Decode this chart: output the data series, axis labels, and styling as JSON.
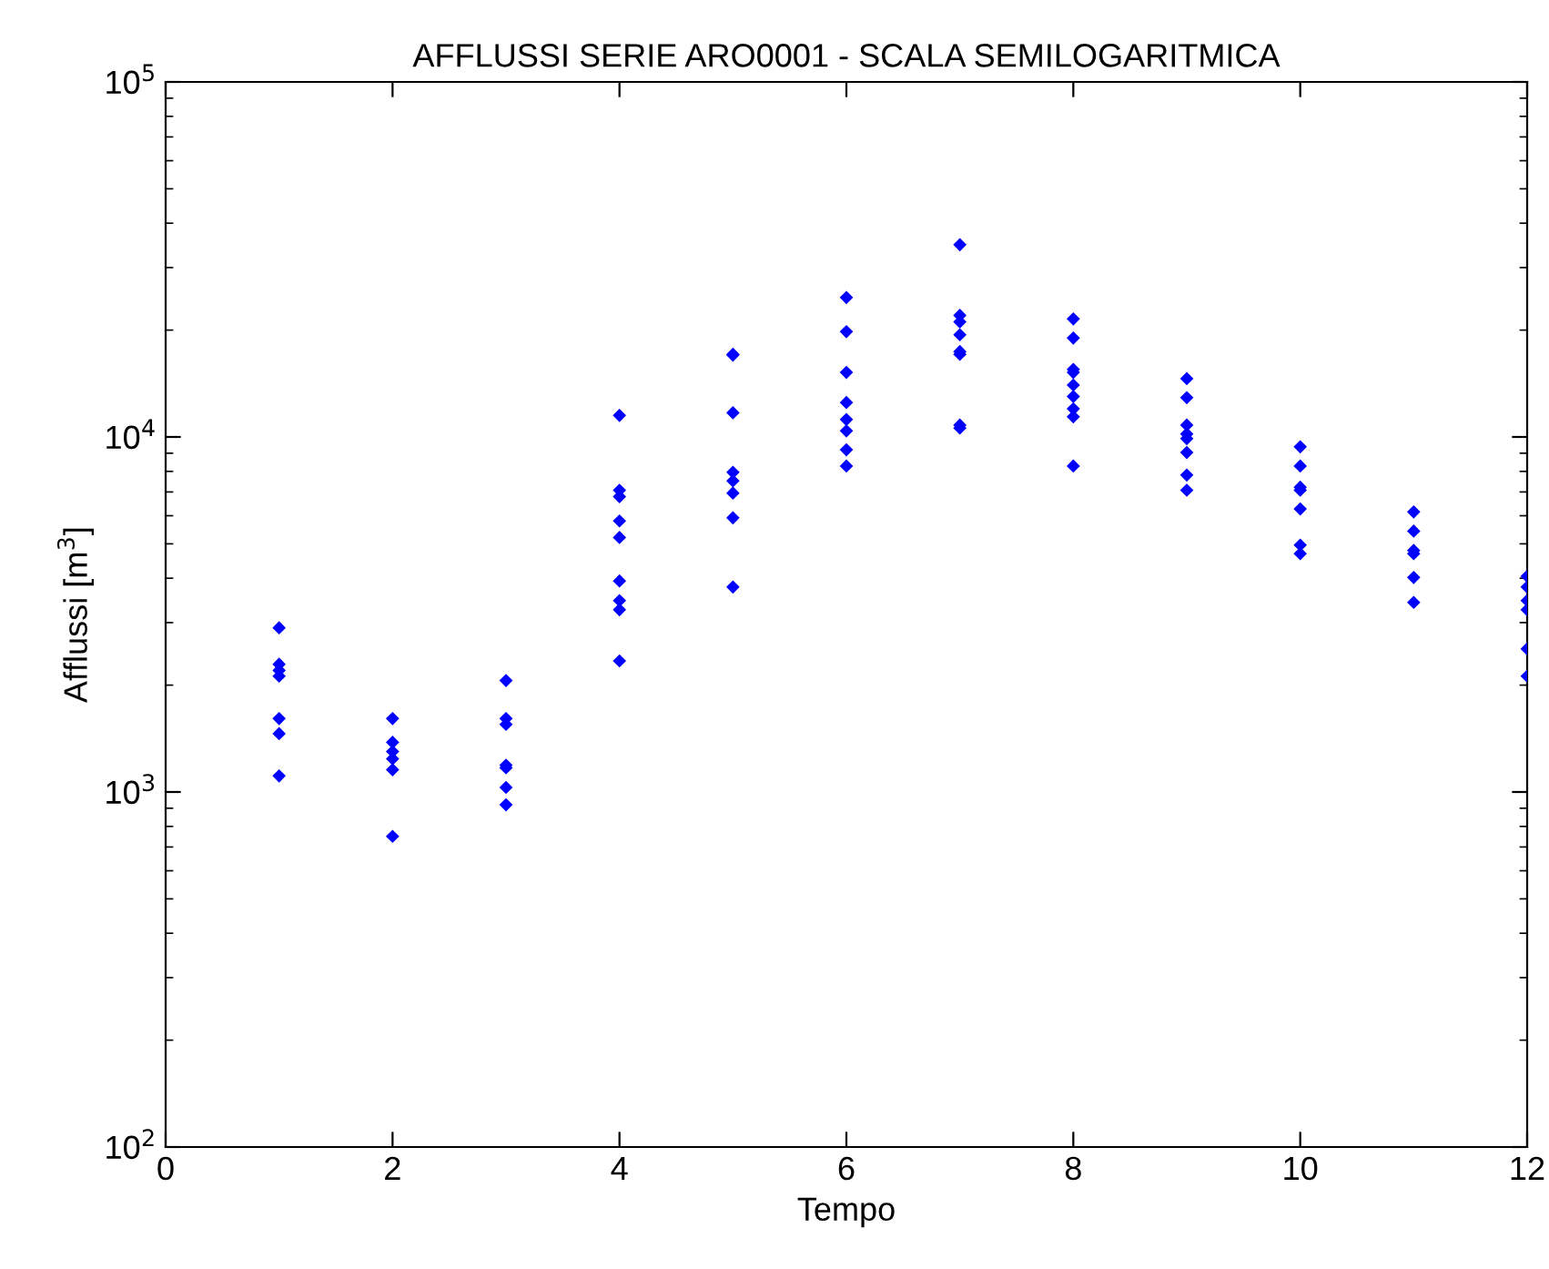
{
  "chart_data": {
    "type": "scatter",
    "title": "AFFLUSSI SERIE ARO0001 - SCALA SEMILOGARITMICA",
    "xlabel": "Tempo",
    "ylabel": "Afflussi [m$^{3}$]",
    "series": [
      {
        "color": "#0000ff",
        "x": [
          1,
          1,
          1,
          1,
          1,
          1,
          1,
          2,
          2,
          2,
          2,
          2,
          2,
          3,
          3,
          3,
          3,
          3,
          3,
          3,
          4,
          4,
          4,
          4,
          4,
          4,
          4,
          4,
          4,
          5,
          5,
          5,
          5,
          5,
          5,
          5,
          5,
          6,
          6,
          6,
          6,
          6,
          6,
          6,
          6,
          7,
          7,
          7,
          7,
          7,
          7,
          7,
          7,
          8,
          8,
          8,
          8,
          8,
          8,
          8,
          8,
          8,
          9,
          9,
          9,
          9,
          9,
          9,
          9,
          9,
          10,
          10,
          10,
          10,
          10,
          10,
          10,
          11,
          11,
          11,
          11,
          11,
          11,
          12,
          12,
          12,
          12,
          12,
          12
        ],
        "values": [
          2900,
          2290,
          2200,
          2120,
          1610,
          1460,
          1110,
          1610,
          1380,
          1300,
          1240,
          1155,
          750,
          2060,
          1610,
          1550,
          1190,
          1170,
          1030,
          920,
          11500,
          7080,
          6790,
          5800,
          5210,
          3930,
          3460,
          3260,
          2340,
          17100,
          17000,
          11700,
          7950,
          7520,
          6950,
          5920,
          3780,
          24700,
          19800,
          15200,
          12500,
          11200,
          10400,
          9200,
          8280,
          34800,
          22000,
          21100,
          19400,
          17400,
          17100,
          10800,
          10600,
          21500,
          19000,
          15500,
          15200,
          14000,
          13000,
          12000,
          11400,
          8280,
          14600,
          12900,
          10800,
          10200,
          9890,
          9040,
          7810,
          7080,
          9380,
          8280,
          7220,
          7080,
          6270,
          4960,
          4690,
          6150,
          5430,
          4790,
          4690,
          4020,
          3420,
          4050,
          3780,
          3460,
          3260,
          2530,
          2120
        ]
      }
    ],
    "xlim": [
      0,
      12
    ],
    "xticks": [
      0,
      2,
      4,
      6,
      8,
      10,
      12
    ],
    "ylim": [
      100,
      100000
    ],
    "yticks": [
      {
        "value": 100,
        "label": "10$^{2}$"
      },
      {
        "value": 1000,
        "label": "10$^{3}$"
      },
      {
        "value": 10000,
        "label": "10$^{4}$"
      },
      {
        "value": 100000,
        "label": "10$^{5}$"
      }
    ],
    "log": "y",
    "marker": "diamond",
    "grid": false
  }
}
